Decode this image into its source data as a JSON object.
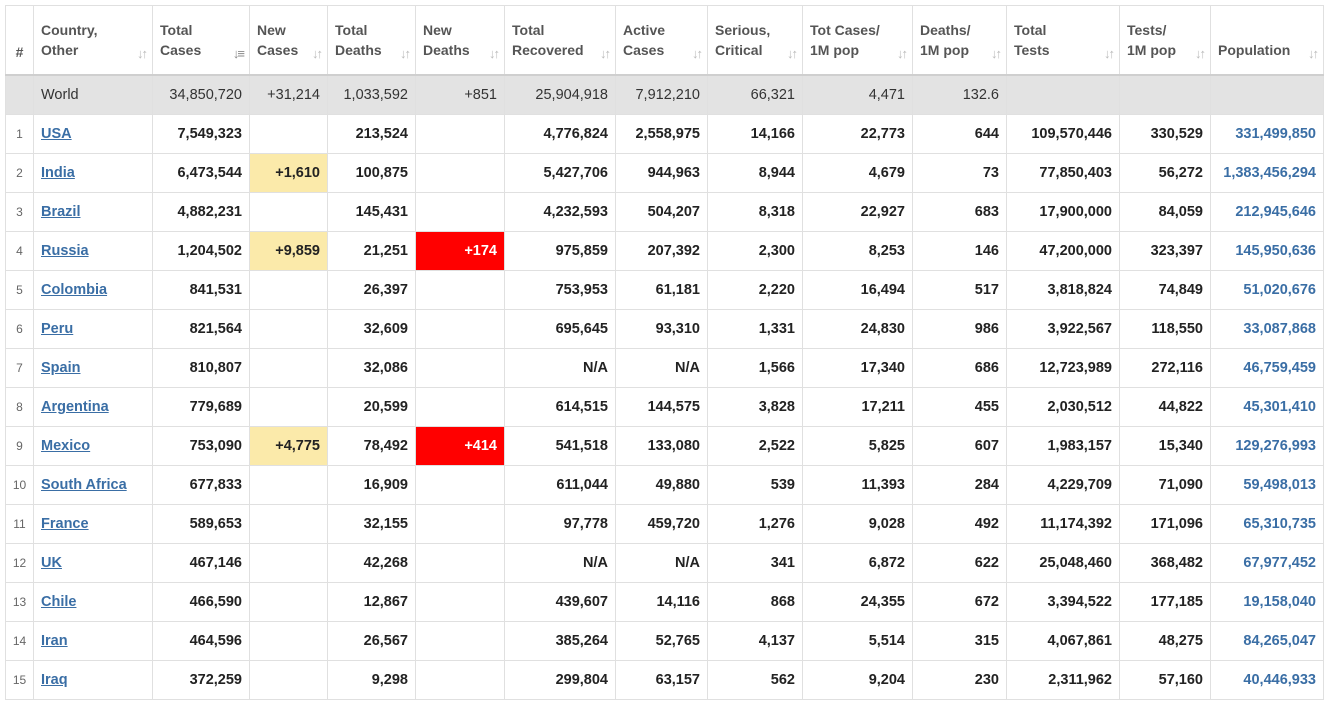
{
  "headers": [
    {
      "key": "num",
      "line1": "#",
      "line2": ""
    },
    {
      "key": "country",
      "line1": "Country,",
      "line2": "Other"
    },
    {
      "key": "total_cases",
      "line1": "Total",
      "line2": "Cases"
    },
    {
      "key": "new_cases",
      "line1": "New",
      "line2": "Cases"
    },
    {
      "key": "total_deaths",
      "line1": "Total",
      "line2": "Deaths"
    },
    {
      "key": "new_deaths",
      "line1": "New",
      "line2": "Deaths"
    },
    {
      "key": "total_recovered",
      "line1": "Total",
      "line2": "Recovered"
    },
    {
      "key": "active_cases",
      "line1": "Active",
      "line2": "Cases"
    },
    {
      "key": "serious_critical",
      "line1": "Serious,",
      "line2": "Critical"
    },
    {
      "key": "tot_cases_1m",
      "line1": "Tot Cases/",
      "line2": "1M pop"
    },
    {
      "key": "deaths_1m",
      "line1": "Deaths/",
      "line2": "1M pop"
    },
    {
      "key": "total_tests",
      "line1": "Total",
      "line2": "Tests"
    },
    {
      "key": "tests_1m",
      "line1": "Tests/",
      "line2": "1M pop"
    },
    {
      "key": "population",
      "line1": "",
      "line2": "Population"
    }
  ],
  "world": {
    "country": "World",
    "total_cases": "34,850,720",
    "new_cases": "+31,214",
    "total_deaths": "1,033,592",
    "new_deaths": "+851",
    "total_recovered": "25,904,918",
    "active_cases": "7,912,210",
    "serious_critical": "66,321",
    "tot_cases_1m": "4,471",
    "deaths_1m": "132.6",
    "total_tests": "",
    "tests_1m": "",
    "population": ""
  },
  "rows": [
    {
      "num": "1",
      "country": "USA",
      "total_cases": "7,549,323",
      "new_cases": "",
      "total_deaths": "213,524",
      "new_deaths": "",
      "total_recovered": "4,776,824",
      "active_cases": "2,558,975",
      "serious_critical": "14,166",
      "tot_cases_1m": "22,773",
      "deaths_1m": "644",
      "total_tests": "109,570,446",
      "tests_1m": "330,529",
      "population": "331,499,850"
    },
    {
      "num": "2",
      "country": "India",
      "total_cases": "6,473,544",
      "new_cases": "+1,610",
      "total_deaths": "100,875",
      "new_deaths": "",
      "total_recovered": "5,427,706",
      "active_cases": "944,963",
      "serious_critical": "8,944",
      "tot_cases_1m": "4,679",
      "deaths_1m": "73",
      "total_tests": "77,850,403",
      "tests_1m": "56,272",
      "population": "1,383,456,294"
    },
    {
      "num": "3",
      "country": "Brazil",
      "total_cases": "4,882,231",
      "new_cases": "",
      "total_deaths": "145,431",
      "new_deaths": "",
      "total_recovered": "4,232,593",
      "active_cases": "504,207",
      "serious_critical": "8,318",
      "tot_cases_1m": "22,927",
      "deaths_1m": "683",
      "total_tests": "17,900,000",
      "tests_1m": "84,059",
      "population": "212,945,646"
    },
    {
      "num": "4",
      "country": "Russia",
      "total_cases": "1,204,502",
      "new_cases": "+9,859",
      "total_deaths": "21,251",
      "new_deaths": "+174",
      "total_recovered": "975,859",
      "active_cases": "207,392",
      "serious_critical": "2,300",
      "tot_cases_1m": "8,253",
      "deaths_1m": "146",
      "total_tests": "47,200,000",
      "tests_1m": "323,397",
      "population": "145,950,636"
    },
    {
      "num": "5",
      "country": "Colombia",
      "total_cases": "841,531",
      "new_cases": "",
      "total_deaths": "26,397",
      "new_deaths": "",
      "total_recovered": "753,953",
      "active_cases": "61,181",
      "serious_critical": "2,220",
      "tot_cases_1m": "16,494",
      "deaths_1m": "517",
      "total_tests": "3,818,824",
      "tests_1m": "74,849",
      "population": "51,020,676"
    },
    {
      "num": "6",
      "country": "Peru",
      "total_cases": "821,564",
      "new_cases": "",
      "total_deaths": "32,609",
      "new_deaths": "",
      "total_recovered": "695,645",
      "active_cases": "93,310",
      "serious_critical": "1,331",
      "tot_cases_1m": "24,830",
      "deaths_1m": "986",
      "total_tests": "3,922,567",
      "tests_1m": "118,550",
      "population": "33,087,868"
    },
    {
      "num": "7",
      "country": "Spain",
      "total_cases": "810,807",
      "new_cases": "",
      "total_deaths": "32,086",
      "new_deaths": "",
      "total_recovered": "N/A",
      "active_cases": "N/A",
      "serious_critical": "1,566",
      "tot_cases_1m": "17,340",
      "deaths_1m": "686",
      "total_tests": "12,723,989",
      "tests_1m": "272,116",
      "population": "46,759,459"
    },
    {
      "num": "8",
      "country": "Argentina",
      "total_cases": "779,689",
      "new_cases": "",
      "total_deaths": "20,599",
      "new_deaths": "",
      "total_recovered": "614,515",
      "active_cases": "144,575",
      "serious_critical": "3,828",
      "tot_cases_1m": "17,211",
      "deaths_1m": "455",
      "total_tests": "2,030,512",
      "tests_1m": "44,822",
      "population": "45,301,410"
    },
    {
      "num": "9",
      "country": "Mexico",
      "total_cases": "753,090",
      "new_cases": "+4,775",
      "total_deaths": "78,492",
      "new_deaths": "+414",
      "total_recovered": "541,518",
      "active_cases": "133,080",
      "serious_critical": "2,522",
      "tot_cases_1m": "5,825",
      "deaths_1m": "607",
      "total_tests": "1,983,157",
      "tests_1m": "15,340",
      "population": "129,276,993"
    },
    {
      "num": "10",
      "country": "South Africa",
      "total_cases": "677,833",
      "new_cases": "",
      "total_deaths": "16,909",
      "new_deaths": "",
      "total_recovered": "611,044",
      "active_cases": "49,880",
      "serious_critical": "539",
      "tot_cases_1m": "11,393",
      "deaths_1m": "284",
      "total_tests": "4,229,709",
      "tests_1m": "71,090",
      "population": "59,498,013"
    },
    {
      "num": "11",
      "country": "France",
      "total_cases": "589,653",
      "new_cases": "",
      "total_deaths": "32,155",
      "new_deaths": "",
      "total_recovered": "97,778",
      "active_cases": "459,720",
      "serious_critical": "1,276",
      "tot_cases_1m": "9,028",
      "deaths_1m": "492",
      "total_tests": "11,174,392",
      "tests_1m": "171,096",
      "population": "65,310,735"
    },
    {
      "num": "12",
      "country": "UK",
      "total_cases": "467,146",
      "new_cases": "",
      "total_deaths": "42,268",
      "new_deaths": "",
      "total_recovered": "N/A",
      "active_cases": "N/A",
      "serious_critical": "341",
      "tot_cases_1m": "6,872",
      "deaths_1m": "622",
      "total_tests": "25,048,460",
      "tests_1m": "368,482",
      "population": "67,977,452"
    },
    {
      "num": "13",
      "country": "Chile",
      "total_cases": "466,590",
      "new_cases": "",
      "total_deaths": "12,867",
      "new_deaths": "",
      "total_recovered": "439,607",
      "active_cases": "14,116",
      "serious_critical": "868",
      "tot_cases_1m": "24,355",
      "deaths_1m": "672",
      "total_tests": "3,394,522",
      "tests_1m": "177,185",
      "population": "19,158,040"
    },
    {
      "num": "14",
      "country": "Iran",
      "total_cases": "464,596",
      "new_cases": "",
      "total_deaths": "26,567",
      "new_deaths": "",
      "total_recovered": "385,264",
      "active_cases": "52,765",
      "serious_critical": "4,137",
      "tot_cases_1m": "5,514",
      "deaths_1m": "315",
      "total_tests": "4,067,861",
      "tests_1m": "48,275",
      "population": "84,265,047"
    },
    {
      "num": "15",
      "country": "Iraq",
      "total_cases": "372,259",
      "new_cases": "",
      "total_deaths": "9,298",
      "new_deaths": "",
      "total_recovered": "299,804",
      "active_cases": "63,157",
      "serious_critical": "562",
      "tot_cases_1m": "9,204",
      "deaths_1m": "230",
      "total_tests": "2,311,962",
      "tests_1m": "57,160",
      "population": "40,446,933"
    }
  ],
  "colors": {
    "new_cases_highlight": "#fbeaaa",
    "new_deaths_highlight": "#ff0000",
    "link": "#3a6ea5",
    "world_row_bg": "#e3e3e3"
  },
  "sort": {
    "active_column": "total_cases",
    "icons": "sort-arrows-icon"
  }
}
